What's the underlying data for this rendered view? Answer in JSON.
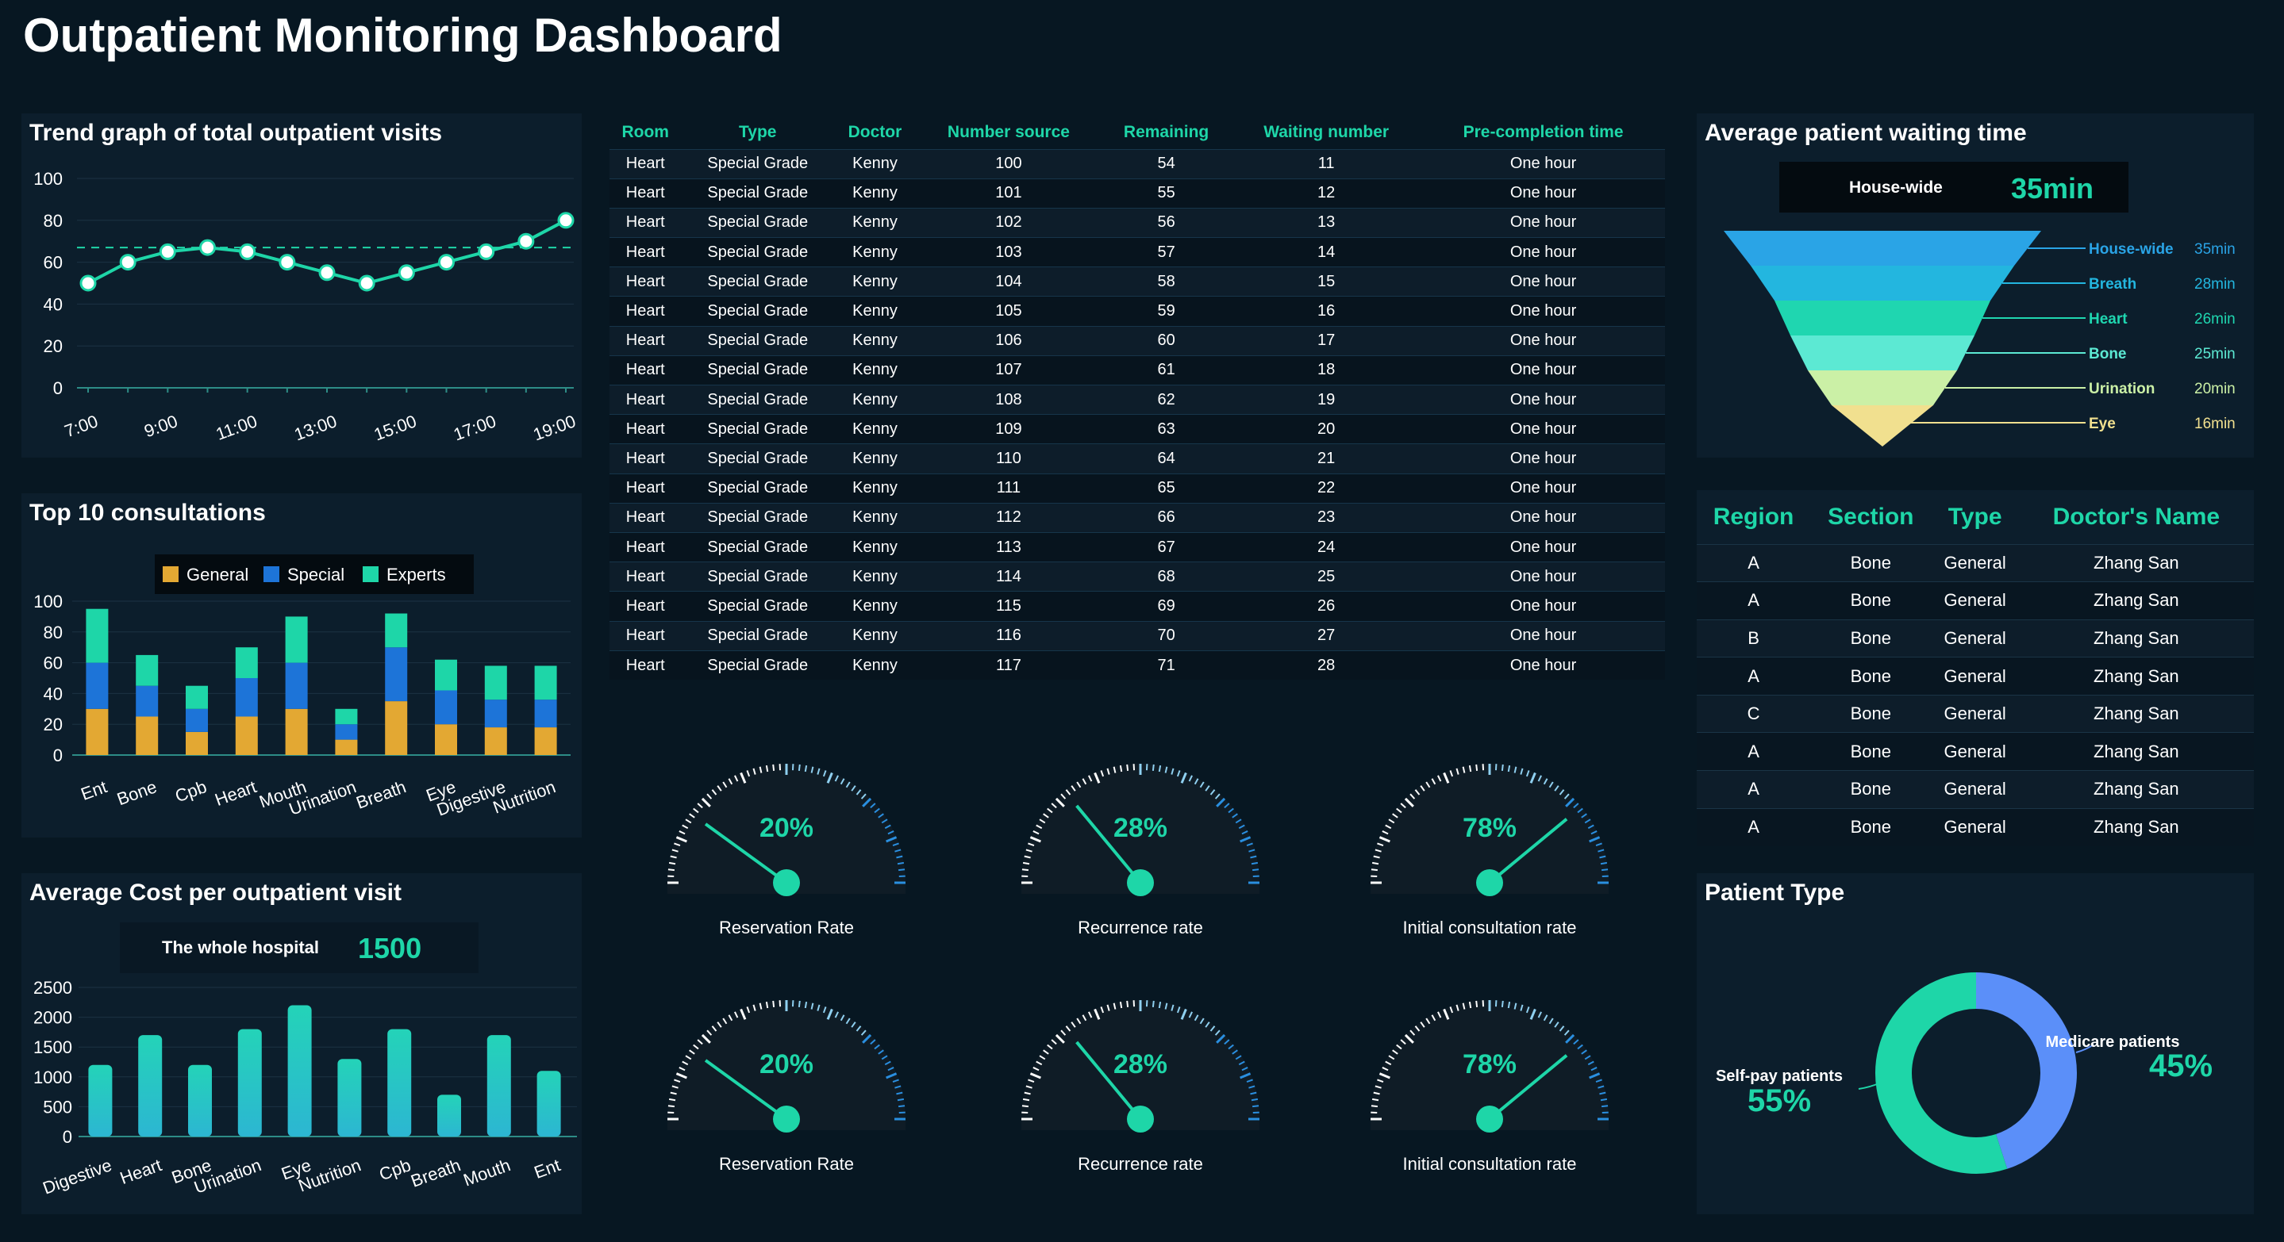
{
  "page_title": "Outpatient Monitoring Dashboard",
  "trend": {
    "title": "Trend graph of total outpatient visits",
    "chart_data": {
      "type": "line",
      "categories": [
        "7:00",
        "8:00",
        "9:00",
        "10:00",
        "11:00",
        "12:00",
        "13:00",
        "14:00",
        "15:00",
        "16:00",
        "17:00",
        "18:00",
        "19:00"
      ],
      "x_tick_labels": [
        "7:00",
        "9:00",
        "11:00",
        "13:00",
        "15:00",
        "17:00",
        "19:00"
      ],
      "values": [
        50,
        60,
        65,
        67,
        65,
        60,
        55,
        50,
        55,
        60,
        65,
        70,
        80
      ],
      "average_line": 67,
      "ylim": [
        0,
        100
      ],
      "yticks": [
        0,
        20,
        40,
        60,
        80,
        100
      ],
      "color": "#1ed6a8"
    }
  },
  "top10": {
    "title": "Top 10 consultations",
    "chart_data": {
      "type": "bar",
      "stacked": true,
      "categories": [
        "Ent",
        "Bone",
        "Cpb",
        "Heart",
        "Mouth",
        "Urination",
        "Breath",
        "Eye",
        "Digestive",
        "Nutrition"
      ],
      "series": [
        {
          "name": "General",
          "color": "#e3a833",
          "values": [
            30,
            25,
            15,
            25,
            30,
            10,
            35,
            20,
            18,
            18
          ]
        },
        {
          "name": "Special",
          "color": "#1d74d8",
          "values": [
            30,
            20,
            15,
            25,
            30,
            10,
            35,
            22,
            18,
            18
          ]
        },
        {
          "name": "Experts",
          "color": "#1ed6a8",
          "values": [
            35,
            20,
            15,
            20,
            30,
            10,
            22,
            20,
            22,
            22
          ]
        }
      ],
      "ylim": [
        0,
        100
      ],
      "yticks": [
        0,
        20,
        40,
        60,
        80,
        100
      ],
      "legend": "top"
    }
  },
  "cost": {
    "title": "Average Cost per outpatient visit",
    "summary_label": "The whole hospital",
    "summary_value": "1500",
    "chart_data": {
      "type": "bar",
      "categories": [
        "Digestive",
        "Heart",
        "Bone",
        "Urination",
        "Eye",
        "Nutrition",
        "Cpb",
        "Breath",
        "Mouth",
        "Ent"
      ],
      "values": [
        1200,
        1700,
        1200,
        1800,
        2200,
        1300,
        1800,
        700,
        1700,
        1100
      ],
      "ylim": [
        0,
        2500
      ],
      "yticks": [
        0,
        500,
        1000,
        1500,
        2000,
        2500
      ],
      "color": "#2fc9c9"
    }
  },
  "main_table": {
    "columns": [
      "Room",
      "Type",
      "Doctor",
      "Number source",
      "Remaining",
      "Waiting number",
      "Pre-completion time"
    ],
    "rows": [
      [
        "Heart",
        "Special Grade",
        "Kenny",
        "100",
        "54",
        "11",
        "One hour"
      ],
      [
        "Heart",
        "Special Grade",
        "Kenny",
        "101",
        "55",
        "12",
        "One hour"
      ],
      [
        "Heart",
        "Special Grade",
        "Kenny",
        "102",
        "56",
        "13",
        "One hour"
      ],
      [
        "Heart",
        "Special Grade",
        "Kenny",
        "103",
        "57",
        "14",
        "One hour"
      ],
      [
        "Heart",
        "Special Grade",
        "Kenny",
        "104",
        "58",
        "15",
        "One hour"
      ],
      [
        "Heart",
        "Special Grade",
        "Kenny",
        "105",
        "59",
        "16",
        "One hour"
      ],
      [
        "Heart",
        "Special Grade",
        "Kenny",
        "106",
        "60",
        "17",
        "One hour"
      ],
      [
        "Heart",
        "Special Grade",
        "Kenny",
        "107",
        "61",
        "18",
        "One hour"
      ],
      [
        "Heart",
        "Special Grade",
        "Kenny",
        "108",
        "62",
        "19",
        "One hour"
      ],
      [
        "Heart",
        "Special Grade",
        "Kenny",
        "109",
        "63",
        "20",
        "One hour"
      ],
      [
        "Heart",
        "Special Grade",
        "Kenny",
        "110",
        "64",
        "21",
        "One hour"
      ],
      [
        "Heart",
        "Special Grade",
        "Kenny",
        "111",
        "65",
        "22",
        "One hour"
      ],
      [
        "Heart",
        "Special Grade",
        "Kenny",
        "112",
        "66",
        "23",
        "One hour"
      ],
      [
        "Heart",
        "Special Grade",
        "Kenny",
        "113",
        "67",
        "24",
        "One hour"
      ],
      [
        "Heart",
        "Special Grade",
        "Kenny",
        "114",
        "68",
        "25",
        "One hour"
      ],
      [
        "Heart",
        "Special Grade",
        "Kenny",
        "115",
        "69",
        "26",
        "One hour"
      ],
      [
        "Heart",
        "Special Grade",
        "Kenny",
        "116",
        "70",
        "27",
        "One hour"
      ],
      [
        "Heart",
        "Special Grade",
        "Kenny",
        "117",
        "71",
        "28",
        "One hour"
      ]
    ]
  },
  "gauges": [
    {
      "label": "Reservation Rate",
      "value": 20,
      "value_text": "20%"
    },
    {
      "label": "Recurrence rate",
      "value": 28,
      "value_text": "28%"
    },
    {
      "label": "Initial consultation rate",
      "value": 78,
      "value_text": "78%"
    },
    {
      "label": "Reservation Rate",
      "value": 20,
      "value_text": "20%"
    },
    {
      "label": "Recurrence rate",
      "value": 28,
      "value_text": "28%"
    },
    {
      "label": "Initial consultation rate",
      "value": 78,
      "value_text": "78%"
    }
  ],
  "waiting": {
    "title": "Average patient waiting time",
    "summary_label": "House-wide",
    "summary_value": "35min",
    "chart_data": {
      "type": "funnel",
      "stages": [
        {
          "name": "House-wide",
          "value_text": "35min",
          "color": "#2aa4e6"
        },
        {
          "name": "Breath",
          "value_text": "28min",
          "color": "#23b6df"
        },
        {
          "name": "Heart",
          "value_text": "26min",
          "color": "#1fd6b0"
        },
        {
          "name": "Bone",
          "value_text": "25min",
          "color": "#5ce9d3"
        },
        {
          "name": "Urination",
          "value_text": "20min",
          "color": "#cbf0a6"
        },
        {
          "name": "Eye",
          "value_text": "16min",
          "color": "#f1e08f"
        }
      ]
    }
  },
  "doctor_table": {
    "columns": [
      "Region",
      "Section",
      "Type",
      "Doctor's Name"
    ],
    "rows": [
      [
        "A",
        "Bone",
        "General",
        "Zhang San"
      ],
      [
        "A",
        "Bone",
        "General",
        "Zhang San"
      ],
      [
        "B",
        "Bone",
        "General",
        "Zhang San"
      ],
      [
        "A",
        "Bone",
        "General",
        "Zhang San"
      ],
      [
        "C",
        "Bone",
        "General",
        "Zhang San"
      ],
      [
        "A",
        "Bone",
        "General",
        "Zhang San"
      ],
      [
        "A",
        "Bone",
        "General",
        "Zhang San"
      ],
      [
        "A",
        "Bone",
        "General",
        "Zhang San"
      ]
    ]
  },
  "patient_type": {
    "title": "Patient Type",
    "chart_data": {
      "type": "pie",
      "donut": true,
      "slices": [
        {
          "name": "Medicare patients",
          "value": 45,
          "value_text": "45%",
          "color": "#5b8ff9"
        },
        {
          "name": "Self-pay patients",
          "value": 55,
          "value_text": "55%",
          "color": "#1ed6a8"
        }
      ]
    }
  }
}
